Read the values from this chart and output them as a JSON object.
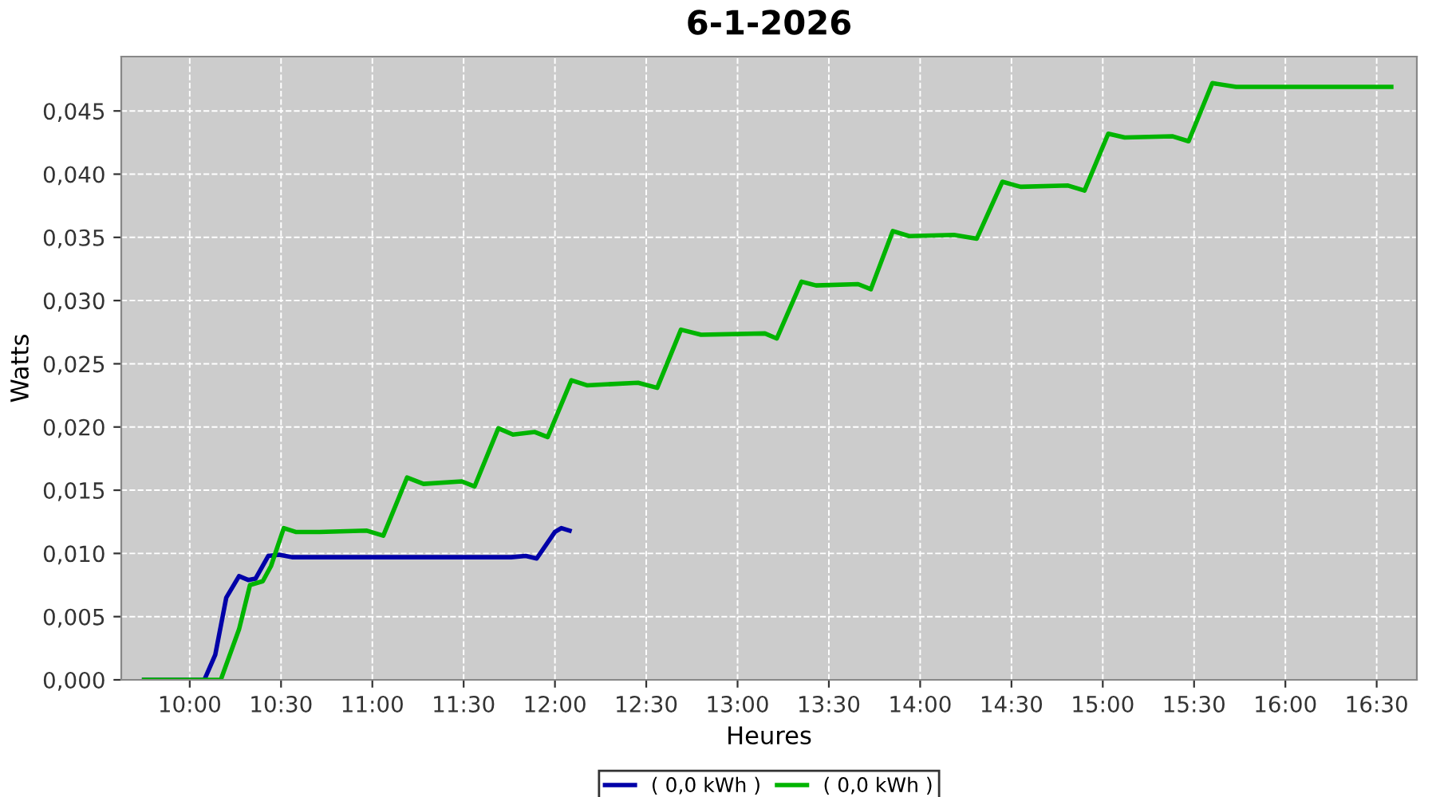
{
  "chart_data": {
    "type": "line",
    "title": "6-1-2026",
    "xlabel": "Heures",
    "ylabel": "Watts",
    "xlim": [
      9.625,
      16.72
    ],
    "ylim": [
      0,
      0.0493
    ],
    "xticks": [
      {
        "value": 10,
        "label": "10:00"
      },
      {
        "value": 10.5,
        "label": "10:30"
      },
      {
        "value": 11,
        "label": "11:00"
      },
      {
        "value": 11.5,
        "label": "11:30"
      },
      {
        "value": 12,
        "label": "12:00"
      },
      {
        "value": 12.5,
        "label": "12:30"
      },
      {
        "value": 13,
        "label": "13:00"
      },
      {
        "value": 13.5,
        "label": "13:30"
      },
      {
        "value": 14,
        "label": "14:00"
      },
      {
        "value": 14.5,
        "label": "14:30"
      },
      {
        "value": 15,
        "label": "15:00"
      },
      {
        "value": 15.5,
        "label": "15:30"
      },
      {
        "value": 16,
        "label": "16:00"
      },
      {
        "value": 16.5,
        "label": "16:30"
      }
    ],
    "yticks": [
      {
        "value": 0,
        "label": "0,000"
      },
      {
        "value": 0.005,
        "label": "0,005"
      },
      {
        "value": 0.01,
        "label": "0,010"
      },
      {
        "value": 0.015,
        "label": "0,015"
      },
      {
        "value": 0.02,
        "label": "0,020"
      },
      {
        "value": 0.025,
        "label": "0,025"
      },
      {
        "value": 0.03,
        "label": "0,030"
      },
      {
        "value": 0.035,
        "label": "0,035"
      },
      {
        "value": 0.04,
        "label": "0,040"
      },
      {
        "value": 0.045,
        "label": "0,045"
      }
    ],
    "grid": true,
    "legend": "bottom",
    "marker": "none",
    "line_style": "solid",
    "series": [
      {
        "name": "( 0,0 kWh )",
        "color": "#0000a8",
        "x": [
          9.75,
          10.08,
          10.14,
          10.2,
          10.27,
          10.32,
          10.36,
          10.43,
          10.49,
          10.56,
          11.76,
          11.84,
          11.9,
          12.0,
          12.035,
          12.08
        ],
        "values": [
          0,
          0,
          0.002,
          0.0065,
          0.0082,
          0.0079,
          0.008,
          0.0098,
          0.0099,
          0.0097,
          0.0097,
          0.0098,
          0.0096,
          0.0117,
          0.012,
          0.0118
        ]
      },
      {
        "name": "( 0,0 kWh )",
        "color": "#00b400",
        "x": [
          9.75,
          10.17,
          10.27,
          10.33,
          10.4,
          10.445,
          10.515,
          10.58,
          10.71,
          10.97,
          11.06,
          11.19,
          11.28,
          11.49,
          11.56,
          11.69,
          11.77,
          11.89,
          11.96,
          12.09,
          12.175,
          12.455,
          12.56,
          12.69,
          12.8,
          13.15,
          13.215,
          13.35,
          13.43,
          13.66,
          13.73,
          13.85,
          13.94,
          14.185,
          14.31,
          14.45,
          14.55,
          14.81,
          14.9,
          15.03,
          15.12,
          15.38,
          15.47,
          15.6,
          15.73,
          16.58
        ],
        "values": [
          0,
          0,
          0.004,
          0.0075,
          0.0078,
          0.009,
          0.012,
          0.0117,
          0.0117,
          0.0118,
          0.0114,
          0.016,
          0.0155,
          0.0157,
          0.0153,
          0.0199,
          0.0194,
          0.0196,
          0.0192,
          0.0237,
          0.0233,
          0.0235,
          0.0231,
          0.0277,
          0.0273,
          0.0274,
          0.027,
          0.0315,
          0.0312,
          0.0313,
          0.0309,
          0.0355,
          0.0351,
          0.0352,
          0.0349,
          0.0394,
          0.039,
          0.0391,
          0.0387,
          0.0432,
          0.0429,
          0.043,
          0.0426,
          0.0472,
          0.0469,
          0.0469
        ]
      }
    ]
  }
}
